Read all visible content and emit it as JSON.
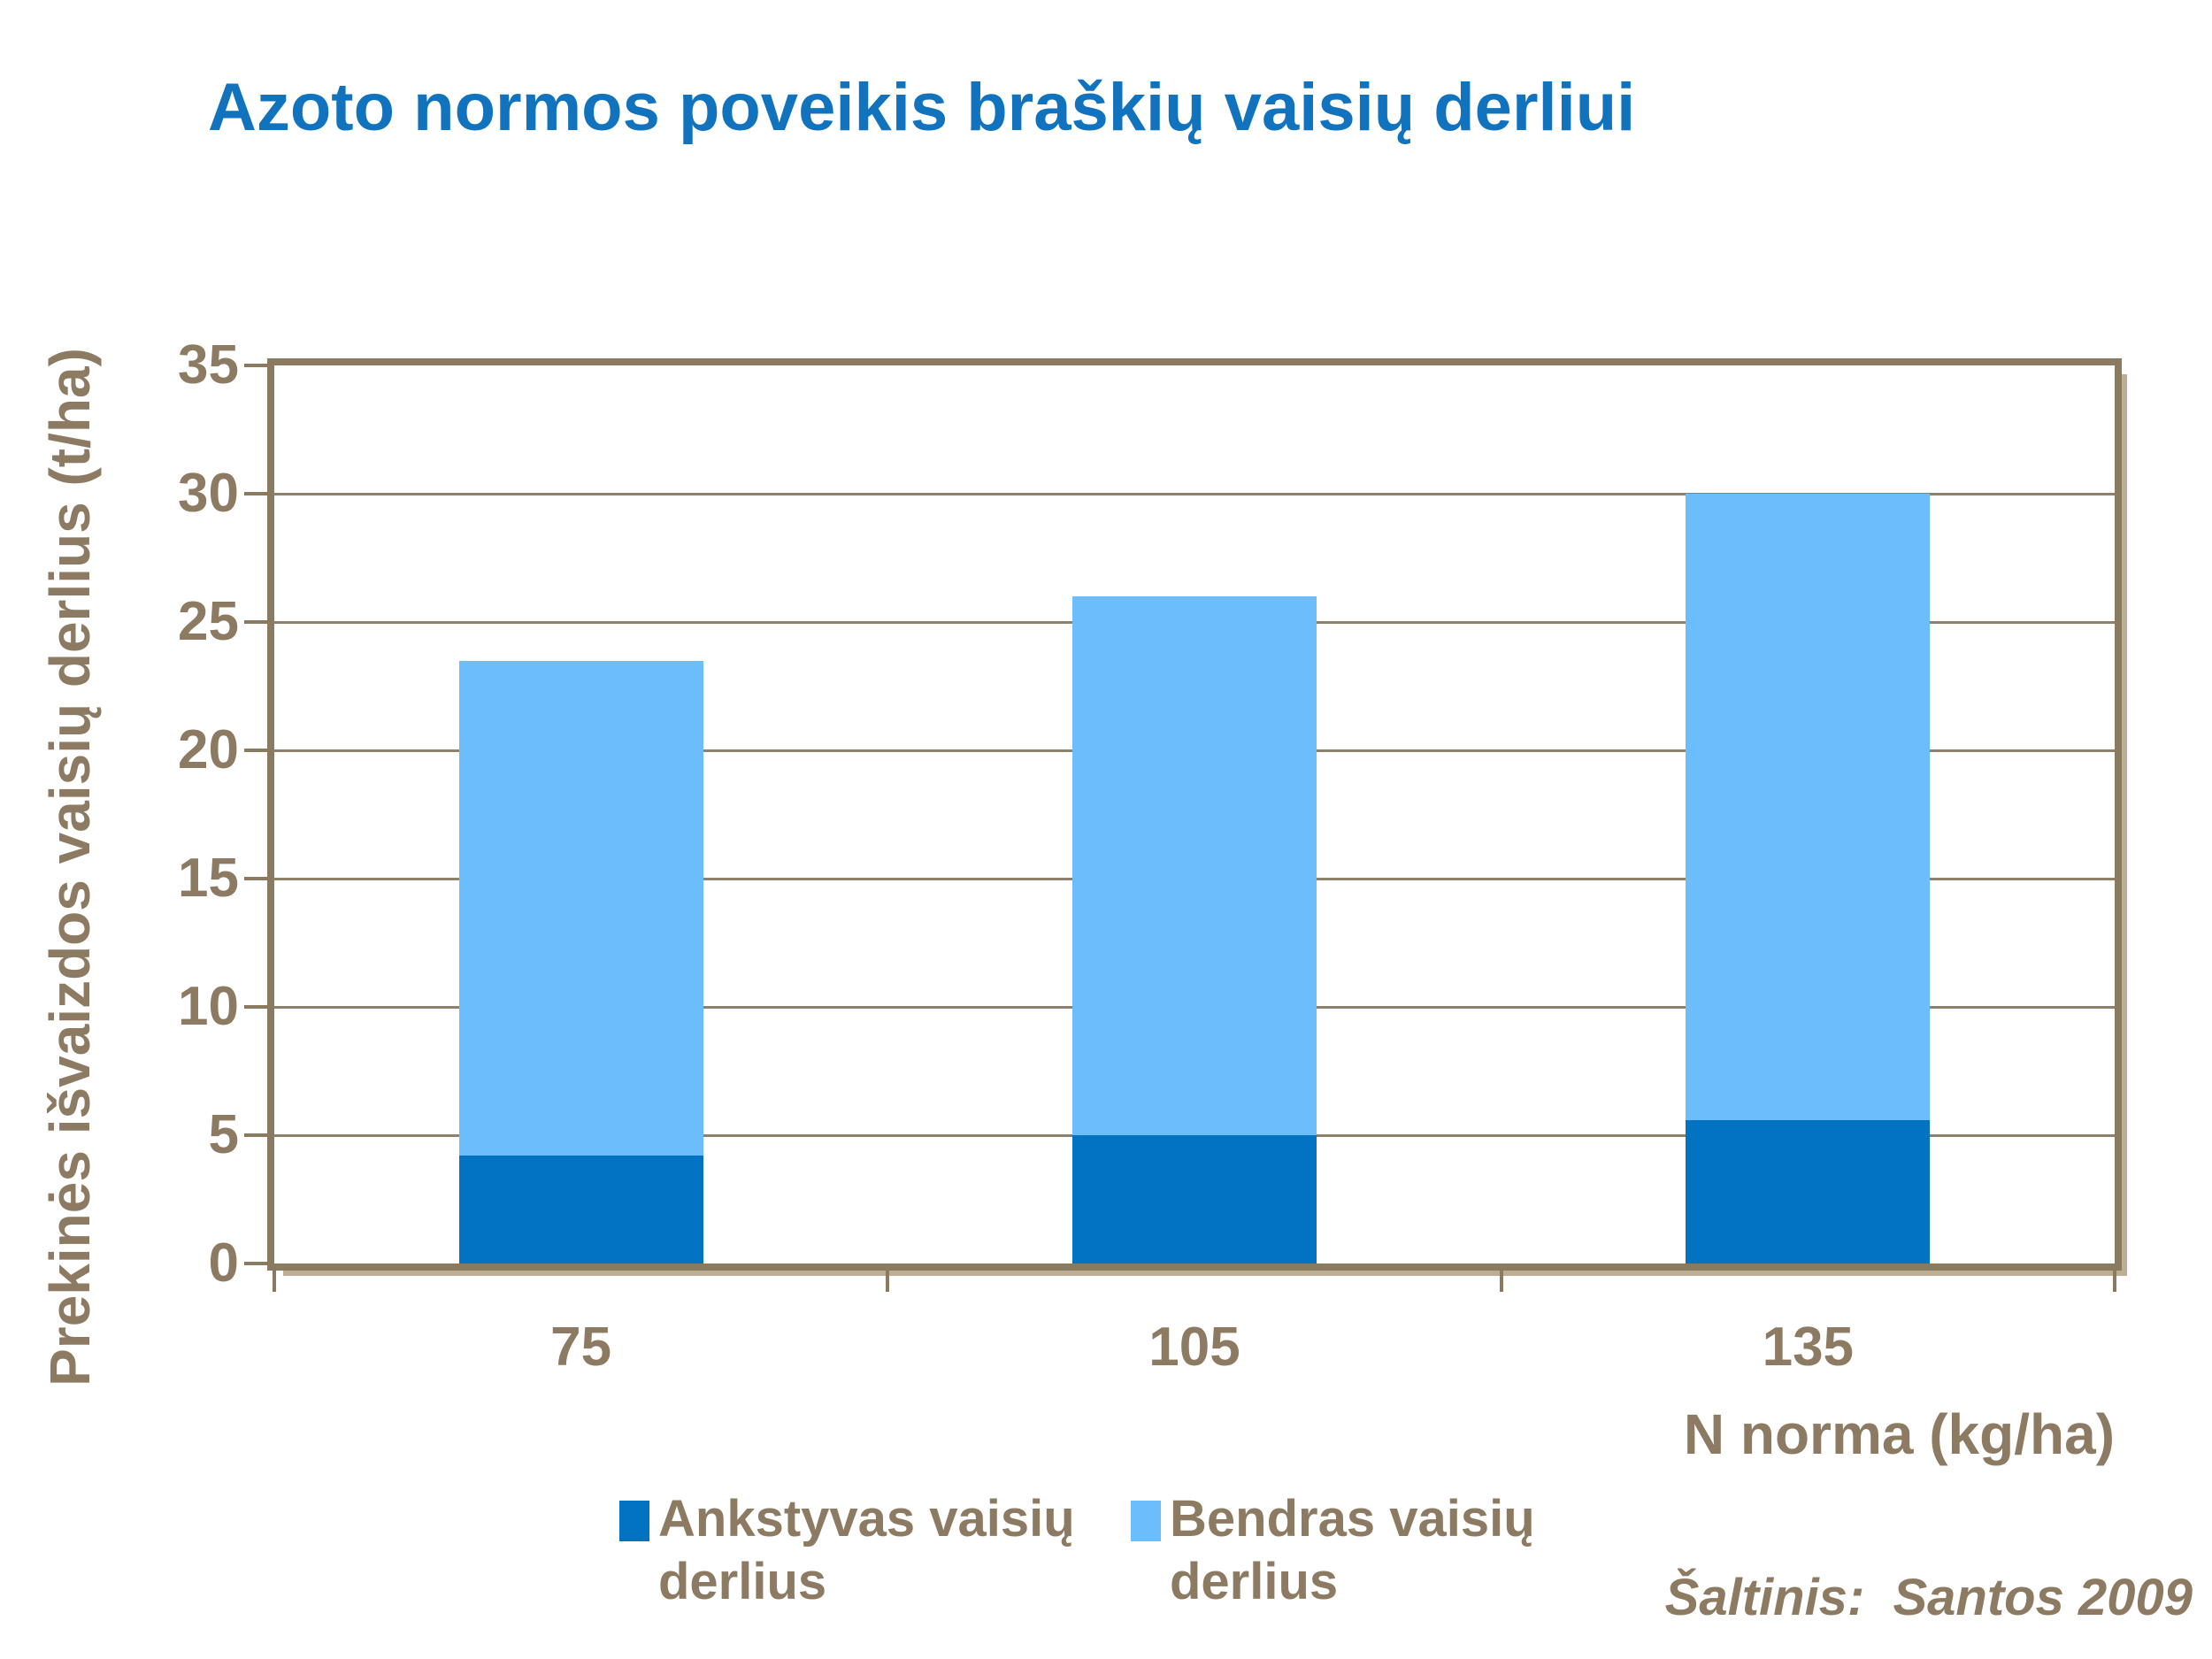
{
  "title": "Azoto normos poveikis braškių vaisių derliui",
  "source_note": "Šaltinis:  Santos 2009",
  "colors": {
    "title_blue": "#1173BD",
    "text_brown": "#8C7B62",
    "gridline": "#8F8069",
    "frame": "#8A7A5F",
    "early_series": "#0173C1",
    "total_series": "#6CBDFB"
  },
  "chart_data": {
    "type": "bar",
    "stacked": true,
    "title": "Azoto normos poveikis braškių vaisių derliui",
    "categories": [
      "75",
      "105",
      "135"
    ],
    "series": [
      {
        "name": "Ankstyvas vaisių derlius",
        "role": "early-yield-bottom-segment",
        "color_key": "early_series",
        "values": [
          4.2,
          5.0,
          5.6
        ]
      },
      {
        "name": "Bendras vaisių derlius",
        "role": "total-yield-full-bar-height",
        "color_key": "total_series",
        "values": [
          23.5,
          26.0,
          30.0
        ]
      }
    ],
    "xlabel": "N norma (kg/ha)",
    "ylabel": "Prekinės išvaizdos vaisių derlius (t/ha)",
    "ylim": [
      0,
      35
    ],
    "yticks": [
      0,
      5,
      10,
      15,
      20,
      25,
      30,
      35
    ],
    "grid": true,
    "legend_position": "bottom"
  },
  "legend": {
    "items": [
      {
        "label": "Ankstyvas vaisių derlius",
        "label_lines": [
          "Ankstyvas vaisių",
          "derlius"
        ],
        "color_key": "early_series"
      },
      {
        "label": "Bendras vaisių derlius",
        "label_lines": [
          "Bendras vaisių",
          "derlius"
        ],
        "color_key": "total_series"
      }
    ]
  }
}
